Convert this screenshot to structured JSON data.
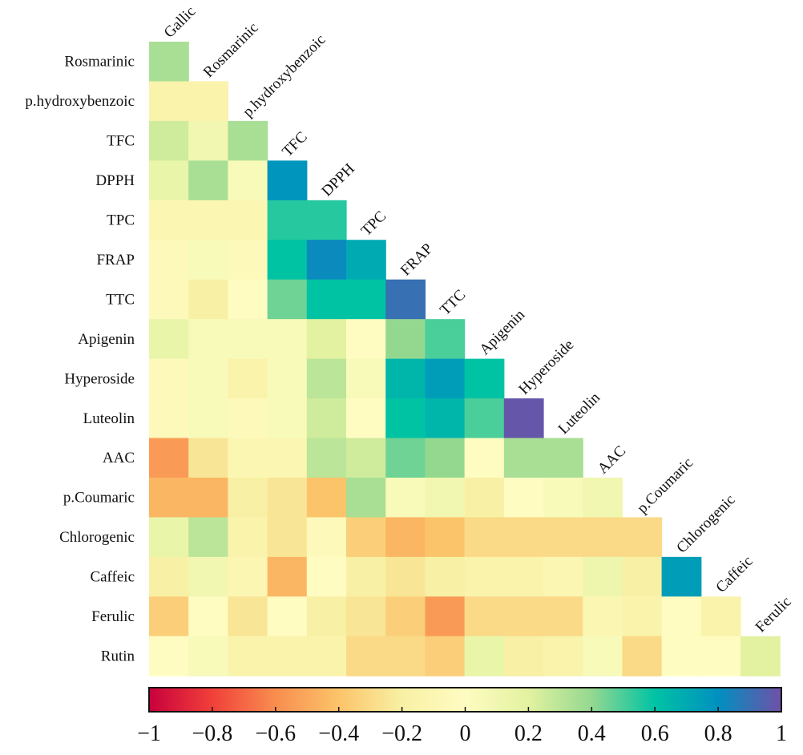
{
  "chart_data": {
    "type": "heatmap",
    "title": "",
    "subtitle": "",
    "layout": "lower-triangle",
    "row_labels": [
      "Rosmarinic",
      "p.hydroxybenzoic",
      "TFC",
      "DPPH",
      "TPC",
      "FRAP",
      "TTC",
      "Apigenin",
      "Hyperoside",
      "Luteolin",
      "AAC",
      "p.Coumaric",
      "Chlorogenic",
      "Caffeic",
      "Ferulic",
      "Rutin"
    ],
    "column_labels": [
      "Gallic",
      "Rosmarinic",
      "p.hydroxybenzoic",
      "TFC",
      "DPPH",
      "TPC",
      "FRAP",
      "TTC",
      "Apigenin",
      "Hyperoside",
      "Luteolin",
      "AAC",
      "p.Coumaric",
      "Chlorogenic",
      "Caffeic",
      "Ferulic"
    ],
    "values": [
      [
        0.35
      ],
      [
        -0.15,
        -0.15
      ],
      [
        0.25,
        0.1,
        0.35
      ],
      [
        0.15,
        0.35,
        0.05,
        0.78
      ],
      [
        -0.1,
        -0.1,
        -0.1,
        0.55,
        0.55
      ],
      [
        -0.05,
        0.05,
        -0.05,
        0.6,
        0.82,
        0.7
      ],
      [
        -0.05,
        -0.2,
        0.0,
        0.45,
        0.6,
        0.6,
        0.9
      ],
      [
        0.15,
        0.05,
        0.05,
        0.05,
        0.2,
        0.0,
        0.4,
        0.5
      ],
      [
        -0.05,
        0.05,
        -0.15,
        0.05,
        0.3,
        0.05,
        0.65,
        0.75,
        0.6
      ],
      [
        -0.05,
        0.05,
        -0.05,
        0.05,
        0.25,
        0.0,
        0.6,
        0.65,
        0.5,
        0.98
      ],
      [
        -0.55,
        -0.25,
        -0.1,
        -0.1,
        0.3,
        0.25,
        0.45,
        0.4,
        0.0,
        0.35,
        0.35
      ],
      [
        -0.45,
        -0.45,
        -0.2,
        -0.25,
        -0.4,
        0.35,
        0.05,
        0.1,
        -0.2,
        0.0,
        0.05,
        0.1
      ],
      [
        0.15,
        0.3,
        -0.15,
        -0.25,
        -0.05,
        -0.35,
        -0.45,
        -0.4,
        -0.3,
        -0.3,
        -0.3,
        -0.3,
        -0.3
      ],
      [
        -0.2,
        0.1,
        -0.1,
        -0.45,
        0.0,
        -0.2,
        -0.25,
        -0.2,
        -0.15,
        -0.15,
        -0.1,
        0.12,
        -0.2,
        0.75
      ],
      [
        -0.35,
        0.0,
        -0.25,
        0.0,
        -0.2,
        -0.25,
        -0.35,
        -0.55,
        -0.3,
        -0.3,
        -0.3,
        -0.1,
        -0.15,
        0.0,
        -0.15
      ],
      [
        0.0,
        0.05,
        -0.15,
        -0.15,
        -0.15,
        -0.3,
        -0.3,
        -0.35,
        0.15,
        -0.2,
        -0.15,
        0.05,
        -0.3,
        0.0,
        0.0,
        0.2
      ]
    ],
    "colorbar": {
      "min": -1,
      "max": 1,
      "ticks": [
        -1,
        -0.8,
        -0.6,
        -0.4,
        -0.2,
        0,
        0.2,
        0.4,
        0.6,
        0.8,
        1
      ],
      "tick_labels": [
        "−1",
        "−0.8",
        "−0.6",
        "−0.4",
        "−0.2",
        "0",
        "0.2",
        "0.4",
        "0.6",
        "0.8",
        "1"
      ],
      "colormap": "spectral",
      "colors": [
        "#c8003c",
        "#f1403a",
        "#f88d4f",
        "#fcc46a",
        "#f8f0a4",
        "#fffcc2",
        "#e2f2a0",
        "#94d890",
        "#00c3a4",
        "#0090c0",
        "#7050a8"
      ]
    }
  }
}
